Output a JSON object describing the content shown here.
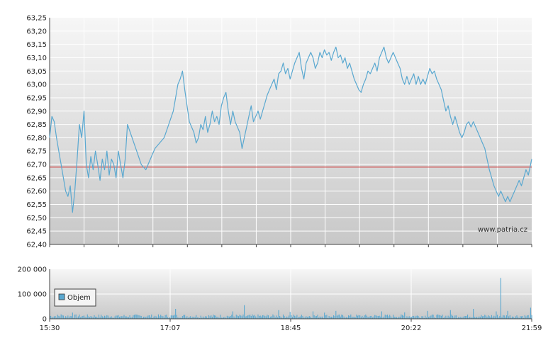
{
  "chart_data": [
    {
      "type": "line",
      "series": [
        {
          "values": [
            [
              0,
              62.8
            ],
            [
              2,
              62.88
            ],
            [
              4,
              62.86
            ],
            [
              6,
              62.8
            ],
            [
              8,
              62.75
            ],
            [
              10,
              62.7
            ],
            [
              12,
              62.65
            ],
            [
              14,
              62.6
            ],
            [
              16,
              62.58
            ],
            [
              18,
              62.62
            ],
            [
              20,
              62.52
            ],
            [
              22,
              62.6
            ],
            [
              24,
              62.72
            ],
            [
              26,
              62.85
            ],
            [
              28,
              62.8
            ],
            [
              30,
              62.9
            ],
            [
              32,
              62.7
            ],
            [
              34,
              62.65
            ],
            [
              36,
              62.73
            ],
            [
              38,
              62.68
            ],
            [
              40,
              62.75
            ],
            [
              42,
              62.7
            ],
            [
              44,
              62.64
            ],
            [
              46,
              62.72
            ],
            [
              48,
              62.68
            ],
            [
              50,
              62.75
            ],
            [
              52,
              62.66
            ],
            [
              54,
              62.72
            ],
            [
              56,
              62.7
            ],
            [
              58,
              62.65
            ],
            [
              60,
              62.75
            ],
            [
              62,
              62.7
            ],
            [
              64,
              62.65
            ],
            [
              66,
              62.72
            ],
            [
              68,
              62.85
            ],
            [
              72,
              62.8
            ],
            [
              76,
              62.75
            ],
            [
              80,
              62.7
            ],
            [
              84,
              62.68
            ],
            [
              88,
              62.72
            ],
            [
              92,
              62.76
            ],
            [
              96,
              62.78
            ],
            [
              100,
              62.8
            ],
            [
              104,
              62.85
            ],
            [
              108,
              62.9
            ],
            [
              110,
              62.95
            ],
            [
              112,
              63.0
            ],
            [
              114,
              63.02
            ],
            [
              116,
              63.05
            ],
            [
              118,
              62.98
            ],
            [
              120,
              62.92
            ],
            [
              122,
              62.86
            ],
            [
              124,
              62.84
            ],
            [
              126,
              62.82
            ],
            [
              128,
              62.78
            ],
            [
              130,
              62.8
            ],
            [
              132,
              62.85
            ],
            [
              134,
              62.83
            ],
            [
              136,
              62.88
            ],
            [
              138,
              62.82
            ],
            [
              140,
              62.85
            ],
            [
              142,
              62.9
            ],
            [
              144,
              62.86
            ],
            [
              146,
              62.88
            ],
            [
              148,
              62.85
            ],
            [
              150,
              62.92
            ],
            [
              152,
              62.95
            ],
            [
              154,
              62.97
            ],
            [
              156,
              62.9
            ],
            [
              158,
              62.85
            ],
            [
              160,
              62.9
            ],
            [
              162,
              62.86
            ],
            [
              164,
              62.84
            ],
            [
              166,
              62.82
            ],
            [
              168,
              62.76
            ],
            [
              170,
              62.8
            ],
            [
              172,
              62.84
            ],
            [
              174,
              62.88
            ],
            [
              176,
              62.92
            ],
            [
              178,
              62.86
            ],
            [
              180,
              62.88
            ],
            [
              182,
              62.9
            ],
            [
              184,
              62.87
            ],
            [
              186,
              62.9
            ],
            [
              188,
              62.93
            ],
            [
              190,
              62.96
            ],
            [
              192,
              62.98
            ],
            [
              194,
              63.0
            ],
            [
              196,
              63.02
            ],
            [
              198,
              62.98
            ],
            [
              200,
              63.04
            ],
            [
              202,
              63.05
            ],
            [
              204,
              63.08
            ],
            [
              206,
              63.04
            ],
            [
              208,
              63.06
            ],
            [
              210,
              63.02
            ],
            [
              212,
              63.05
            ],
            [
              214,
              63.08
            ],
            [
              216,
              63.1
            ],
            [
              218,
              63.12
            ],
            [
              220,
              63.06
            ],
            [
              222,
              63.02
            ],
            [
              224,
              63.08
            ],
            [
              226,
              63.1
            ],
            [
              228,
              63.12
            ],
            [
              230,
              63.1
            ],
            [
              232,
              63.06
            ],
            [
              234,
              63.08
            ],
            [
              236,
              63.12
            ],
            [
              238,
              63.1
            ],
            [
              240,
              63.13
            ],
            [
              242,
              63.11
            ],
            [
              244,
              63.12
            ],
            [
              246,
              63.09
            ],
            [
              248,
              63.12
            ],
            [
              250,
              63.14
            ],
            [
              252,
              63.1
            ],
            [
              254,
              63.11
            ],
            [
              256,
              63.08
            ],
            [
              258,
              63.1
            ],
            [
              260,
              63.06
            ],
            [
              262,
              63.08
            ],
            [
              264,
              63.05
            ],
            [
              266,
              63.02
            ],
            [
              268,
              63.0
            ],
            [
              270,
              62.98
            ],
            [
              272,
              62.97
            ],
            [
              274,
              63.0
            ],
            [
              276,
              63.02
            ],
            [
              278,
              63.05
            ],
            [
              280,
              63.04
            ],
            [
              282,
              63.06
            ],
            [
              284,
              63.08
            ],
            [
              286,
              63.05
            ],
            [
              288,
              63.1
            ],
            [
              290,
              63.12
            ],
            [
              292,
              63.14
            ],
            [
              294,
              63.1
            ],
            [
              296,
              63.08
            ],
            [
              298,
              63.1
            ],
            [
              300,
              63.12
            ],
            [
              302,
              63.1
            ],
            [
              304,
              63.08
            ],
            [
              306,
              63.06
            ],
            [
              308,
              63.02
            ],
            [
              310,
              63.0
            ],
            [
              312,
              63.03
            ],
            [
              314,
              63.0
            ],
            [
              316,
              63.02
            ],
            [
              318,
              63.04
            ],
            [
              320,
              63.0
            ],
            [
              322,
              63.03
            ],
            [
              324,
              63.0
            ],
            [
              326,
              63.02
            ],
            [
              328,
              63.0
            ],
            [
              330,
              63.03
            ],
            [
              332,
              63.06
            ],
            [
              334,
              63.04
            ],
            [
              336,
              63.05
            ],
            [
              338,
              63.02
            ],
            [
              340,
              63.0
            ],
            [
              342,
              62.98
            ],
            [
              344,
              62.94
            ],
            [
              346,
              62.9
            ],
            [
              348,
              62.92
            ],
            [
              350,
              62.88
            ],
            [
              352,
              62.85
            ],
            [
              354,
              62.88
            ],
            [
              356,
              62.85
            ],
            [
              358,
              62.82
            ],
            [
              360,
              62.8
            ],
            [
              362,
              62.82
            ],
            [
              364,
              62.85
            ],
            [
              366,
              62.86
            ],
            [
              368,
              62.84
            ],
            [
              370,
              62.86
            ],
            [
              372,
              62.84
            ],
            [
              374,
              62.82
            ],
            [
              376,
              62.8
            ],
            [
              378,
              62.78
            ],
            [
              380,
              62.76
            ],
            [
              382,
              62.72
            ],
            [
              384,
              62.68
            ],
            [
              386,
              62.65
            ],
            [
              388,
              62.62
            ],
            [
              390,
              62.6
            ],
            [
              392,
              62.58
            ],
            [
              394,
              62.6
            ],
            [
              396,
              62.58
            ],
            [
              398,
              62.56
            ],
            [
              400,
              62.58
            ],
            [
              402,
              62.56
            ],
            [
              404,
              62.58
            ],
            [
              406,
              62.6
            ],
            [
              408,
              62.62
            ],
            [
              410,
              62.64
            ],
            [
              412,
              62.62
            ],
            [
              414,
              62.65
            ],
            [
              416,
              62.68
            ],
            [
              418,
              62.66
            ],
            [
              420,
              62.7
            ],
            [
              421,
              62.72
            ]
          ]
        }
      ],
      "xlim": [
        0,
        421
      ],
      "ylim": [
        62.4,
        63.25
      ],
      "y_ticks": [
        "63,25",
        "63,20",
        "63,15",
        "63,10",
        "63,05",
        "63,00",
        "62,95",
        "62,90",
        "62,85",
        "62,80",
        "62,75",
        "62,70",
        "62,65",
        "62,60",
        "62,55",
        "62,50",
        "62,45",
        "62,40"
      ],
      "reference_line": 62.69,
      "reference_color": "#cc3333",
      "line_color": "#5aa8d0",
      "watermark": "www.patria.cz",
      "grid": true
    },
    {
      "type": "bar",
      "ylim": [
        0,
        200000
      ],
      "y_ticks": [
        "200 000",
        "100 000",
        "0"
      ],
      "x_ticks": [
        "15:30",
        "17:07",
        "18:45",
        "20:22",
        "21:59"
      ],
      "legend": {
        "label": "Objem",
        "position": "left"
      },
      "bar_color": "#5aa8d0",
      "volume_peaks": [
        [
          0,
          12000
        ],
        [
          10,
          18000
        ],
        [
          20,
          25000
        ],
        [
          60,
          15000
        ],
        [
          110,
          40000
        ],
        [
          160,
          30000
        ],
        [
          170,
          55000
        ],
        [
          200,
          35000
        ],
        [
          210,
          28000
        ],
        [
          230,
          30000
        ],
        [
          240,
          25000
        ],
        [
          250,
          32000
        ],
        [
          290,
          30000
        ],
        [
          310,
          26000
        ],
        [
          330,
          32000
        ],
        [
          350,
          35000
        ],
        [
          370,
          40000
        ],
        [
          390,
          30000
        ],
        [
          394,
          165000
        ],
        [
          400,
          32000
        ],
        [
          420,
          45000
        ]
      ],
      "volume_base": 12000
    }
  ]
}
